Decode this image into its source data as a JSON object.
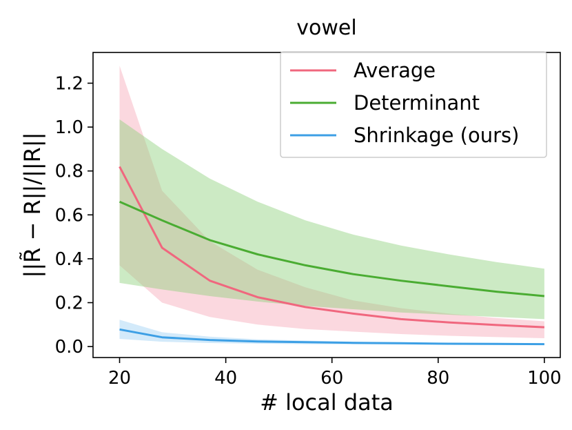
{
  "chart_data": {
    "type": "line",
    "title": "vowel",
    "xlabel": "# local data",
    "ylabel": "||R̃ − R||/||R||",
    "xlim": [
      15,
      103
    ],
    "ylim": [
      -0.05,
      1.34
    ],
    "xticks": [
      20,
      40,
      60,
      80,
      100
    ],
    "yticks": [
      0.0,
      0.2,
      0.4,
      0.6,
      0.8,
      1.0,
      1.2
    ],
    "xtick_labels": [
      "20",
      "40",
      "60",
      "80",
      "100"
    ],
    "ytick_labels": [
      "0.0",
      "0.2",
      "0.4",
      "0.6",
      "0.8",
      "1.0",
      "1.2"
    ],
    "grid": false,
    "legend_position": "top-right",
    "x": [
      20,
      28,
      37,
      46,
      55,
      64,
      73,
      82,
      91,
      100
    ],
    "series": [
      {
        "name": "Average",
        "color": "#f0677e",
        "fill": "#f7a8b8",
        "values": [
          0.82,
          0.45,
          0.3,
          0.225,
          0.18,
          0.15,
          0.125,
          0.11,
          0.098,
          0.088
        ],
        "upper": [
          1.28,
          0.71,
          0.48,
          0.35,
          0.27,
          0.21,
          0.175,
          0.15,
          0.13,
          0.115
        ],
        "lower": [
          0.37,
          0.2,
          0.135,
          0.1,
          0.08,
          0.068,
          0.057,
          0.049,
          0.043,
          0.038
        ]
      },
      {
        "name": "Determinant",
        "color": "#4aac32",
        "fill": "#8fd17d",
        "values": [
          0.66,
          0.575,
          0.485,
          0.42,
          0.37,
          0.33,
          0.3,
          0.275,
          0.25,
          0.23
        ],
        "upper": [
          1.035,
          0.9,
          0.765,
          0.66,
          0.575,
          0.51,
          0.46,
          0.42,
          0.385,
          0.355
        ],
        "lower": [
          0.29,
          0.26,
          0.23,
          0.205,
          0.185,
          0.17,
          0.155,
          0.145,
          0.135,
          0.125
        ]
      },
      {
        "name": "Shrinkage (ours)",
        "color": "#3c9fe5",
        "fill": "#9ed0f3",
        "values": [
          0.078,
          0.042,
          0.03,
          0.023,
          0.02,
          0.017,
          0.015,
          0.013,
          0.012,
          0.011
        ],
        "upper": [
          0.122,
          0.065,
          0.045,
          0.033,
          0.027,
          0.022,
          0.019,
          0.017,
          0.015,
          0.014
        ],
        "lower": [
          0.035,
          0.022,
          0.016,
          0.013,
          0.011,
          0.01,
          0.009,
          0.008,
          0.007,
          0.007
        ]
      }
    ]
  }
}
